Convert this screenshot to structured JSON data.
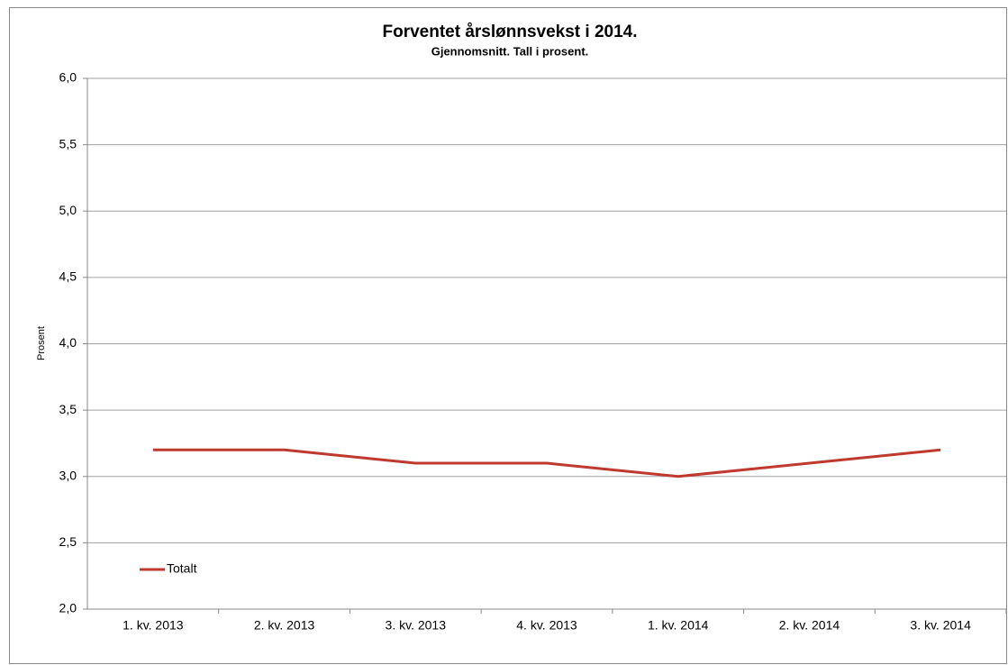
{
  "chart_data": {
    "type": "line",
    "title": "Forventet årslønnsvekst i 2014.",
    "subtitle": "Gjennomsnitt. Tall i prosent.",
    "y_label": "Prosent",
    "categories": [
      "1. kv. 2013",
      "2. kv. 2013",
      "3. kv. 2013",
      "4. kv. 2013",
      "1. kv. 2014",
      "2. kv. 2014",
      "3. kv. 2014"
    ],
    "series": [
      {
        "name": "Totalt",
        "color": "#c0392f",
        "values": [
          3.2,
          3.2,
          3.1,
          3.1,
          3.0,
          3.1,
          3.2
        ]
      }
    ],
    "ylim": [
      2,
      6
    ],
    "yticks": [
      {
        "value": 2,
        "label": "2,0"
      },
      {
        "value": 2.5,
        "label": "2,5"
      },
      {
        "value": 3,
        "label": "3,0"
      },
      {
        "value": 3.5,
        "label": "3,5"
      },
      {
        "value": 4,
        "label": "4,0"
      },
      {
        "value": 4.5,
        "label": "4,5"
      },
      {
        "value": 5,
        "label": "5,0"
      },
      {
        "value": 5.5,
        "label": "5,5"
      },
      {
        "value": 6,
        "label": "6,0"
      }
    ],
    "grid": true,
    "legend": "lower left"
  }
}
